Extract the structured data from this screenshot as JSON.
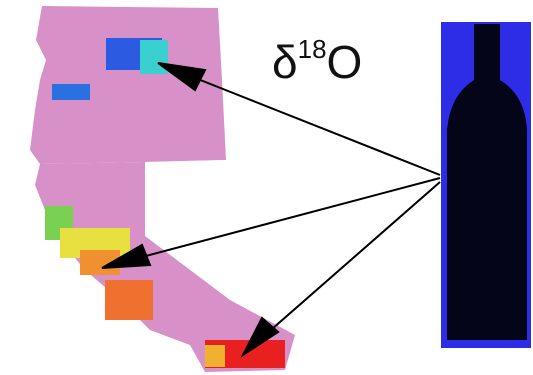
{
  "label": {
    "base": "δ",
    "superscript": "18",
    "element": "O"
  }
}
